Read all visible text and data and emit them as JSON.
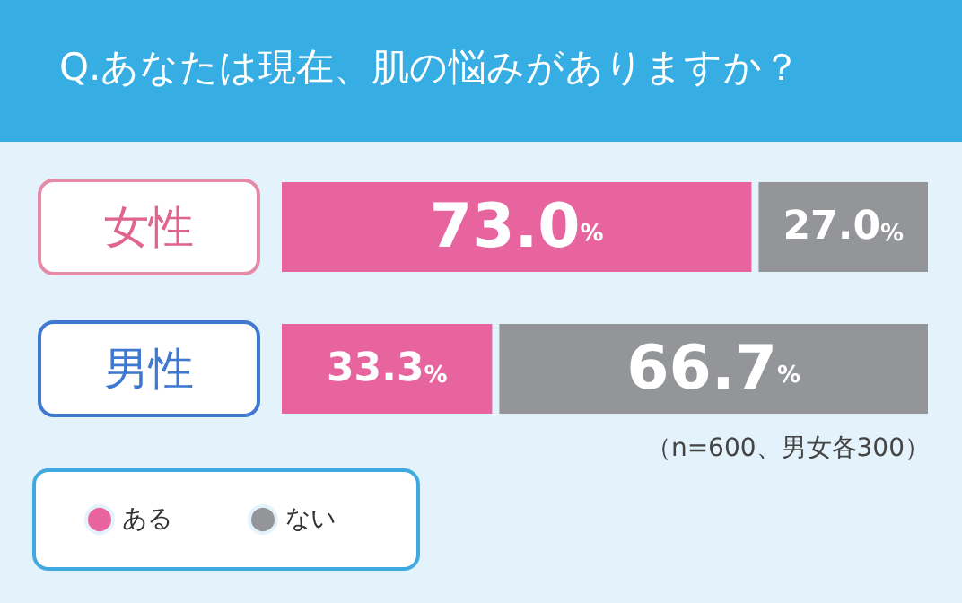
{
  "chart_data": {
    "type": "bar",
    "orientation": "horizontal",
    "stacked": true,
    "title": "Q.あなたは現在、肌の悩みがありますか？",
    "categories": [
      "女性",
      "男性"
    ],
    "series": [
      {
        "name": "ある",
        "color": "#e8649f",
        "values": [
          73.0,
          33.3
        ],
        "value_labels": [
          "73.0%",
          "33.3%"
        ]
      },
      {
        "name": "ない",
        "color": "#939598",
        "values": [
          27.0,
          66.7
        ],
        "value_labels": [
          "27.0%",
          "66.7%"
        ]
      }
    ],
    "legend": "bottom left",
    "annotations": [
      "（n=600、男女各300）"
    ]
  }
}
